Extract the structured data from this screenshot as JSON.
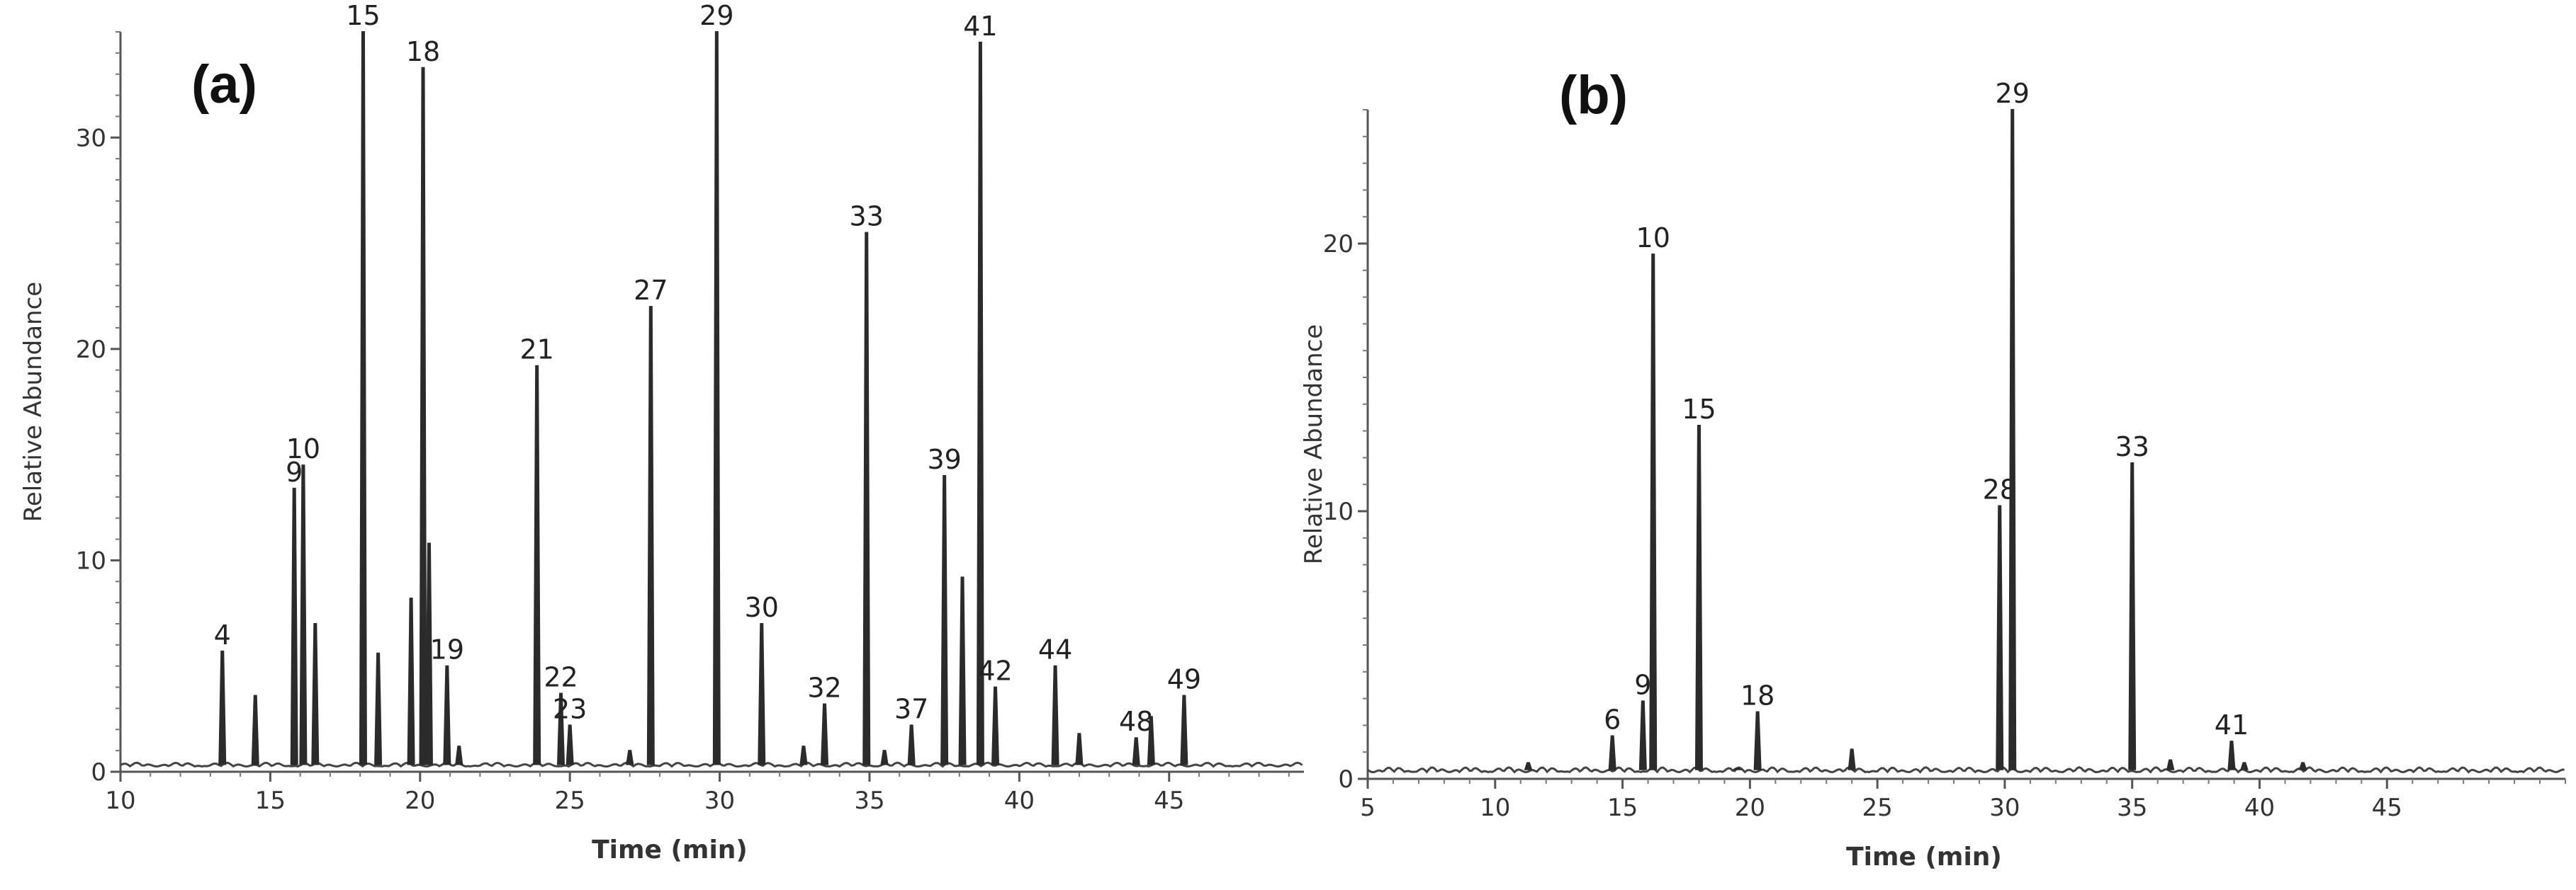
{
  "chart_data": [
    {
      "type": "line",
      "panel_label": "(a)",
      "xlabel": "Time (min)",
      "ylabel": "Relative Abundance",
      "xlim": [
        10,
        49.5
      ],
      "ylim": [
        0,
        35
      ],
      "x_ticks": [
        10,
        15,
        20,
        25,
        30,
        35,
        40,
        45
      ],
      "y_ticks": [
        0,
        10,
        20,
        30
      ],
      "peaks": [
        {
          "label": "4",
          "rt": 13.4,
          "height": 5.7
        },
        {
          "label": "",
          "rt": 14.5,
          "height": 3.6
        },
        {
          "label": "9",
          "rt": 15.8,
          "height": 13.4
        },
        {
          "label": "10",
          "rt": 16.1,
          "height": 14.5
        },
        {
          "label": "",
          "rt": 16.5,
          "height": 7.0
        },
        {
          "label": "15",
          "rt": 18.1,
          "height": 35.0
        },
        {
          "label": "",
          "rt": 18.6,
          "height": 5.6
        },
        {
          "label": "",
          "rt": 19.7,
          "height": 8.2
        },
        {
          "label": "18",
          "rt": 20.1,
          "height": 33.3
        },
        {
          "label": "",
          "rt": 20.3,
          "height": 10.8
        },
        {
          "label": "19",
          "rt": 20.9,
          "height": 5.0
        },
        {
          "label": "",
          "rt": 21.3,
          "height": 1.2
        },
        {
          "label": "21",
          "rt": 23.9,
          "height": 19.2
        },
        {
          "label": "22",
          "rt": 24.7,
          "height": 3.7
        },
        {
          "label": "23",
          "rt": 25.0,
          "height": 2.2
        },
        {
          "label": "",
          "rt": 27.0,
          "height": 1.0
        },
        {
          "label": "27",
          "rt": 27.7,
          "height": 22.0
        },
        {
          "label": "29",
          "rt": 29.9,
          "height": 35.0
        },
        {
          "label": "30",
          "rt": 31.4,
          "height": 7.0
        },
        {
          "label": "",
          "rt": 32.8,
          "height": 1.2
        },
        {
          "label": "32",
          "rt": 33.5,
          "height": 3.2
        },
        {
          "label": "33",
          "rt": 34.9,
          "height": 25.5
        },
        {
          "label": "",
          "rt": 35.5,
          "height": 1.0
        },
        {
          "label": "37",
          "rt": 36.4,
          "height": 2.2
        },
        {
          "label": "39",
          "rt": 37.5,
          "height": 14.0
        },
        {
          "label": "",
          "rt": 38.1,
          "height": 9.2
        },
        {
          "label": "41",
          "rt": 38.7,
          "height": 34.5
        },
        {
          "label": "42",
          "rt": 39.2,
          "height": 4.0
        },
        {
          "label": "44",
          "rt": 41.2,
          "height": 5.0
        },
        {
          "label": "",
          "rt": 42.0,
          "height": 1.8
        },
        {
          "label": "48",
          "rt": 43.9,
          "height": 1.6
        },
        {
          "label": "",
          "rt": 44.4,
          "height": 2.6
        },
        {
          "label": "49",
          "rt": 45.5,
          "height": 3.6
        }
      ]
    },
    {
      "type": "line",
      "panel_label": "(b)",
      "xlabel": "Time (min)",
      "ylabel": "Relative Abundance",
      "xlim": [
        5,
        52
      ],
      "ylim": [
        0,
        25
      ],
      "x_ticks": [
        5,
        10,
        15,
        20,
        25,
        30,
        35,
        40,
        45
      ],
      "y_ticks": [
        0,
        10,
        20
      ],
      "peaks": [
        {
          "label": "",
          "rt": 11.3,
          "height": 0.6
        },
        {
          "label": "6",
          "rt": 14.6,
          "height": 1.6
        },
        {
          "label": "9",
          "rt": 15.8,
          "height": 2.9
        },
        {
          "label": "10",
          "rt": 16.2,
          "height": 19.6
        },
        {
          "label": "15",
          "rt": 18.0,
          "height": 13.2
        },
        {
          "label": "",
          "rt": 19.5,
          "height": 0.4
        },
        {
          "label": "18",
          "rt": 20.3,
          "height": 2.5
        },
        {
          "label": "",
          "rt": 24.0,
          "height": 1.1
        },
        {
          "label": "28",
          "rt": 29.8,
          "height": 10.2
        },
        {
          "label": "29",
          "rt": 30.3,
          "height": 25.0
        },
        {
          "label": "33",
          "rt": 35.0,
          "height": 11.8
        },
        {
          "label": "",
          "rt": 36.5,
          "height": 0.7
        },
        {
          "label": "41",
          "rt": 38.9,
          "height": 1.4
        },
        {
          "label": "",
          "rt": 39.4,
          "height": 0.6
        },
        {
          "label": "",
          "rt": 41.7,
          "height": 0.6
        }
      ]
    }
  ]
}
